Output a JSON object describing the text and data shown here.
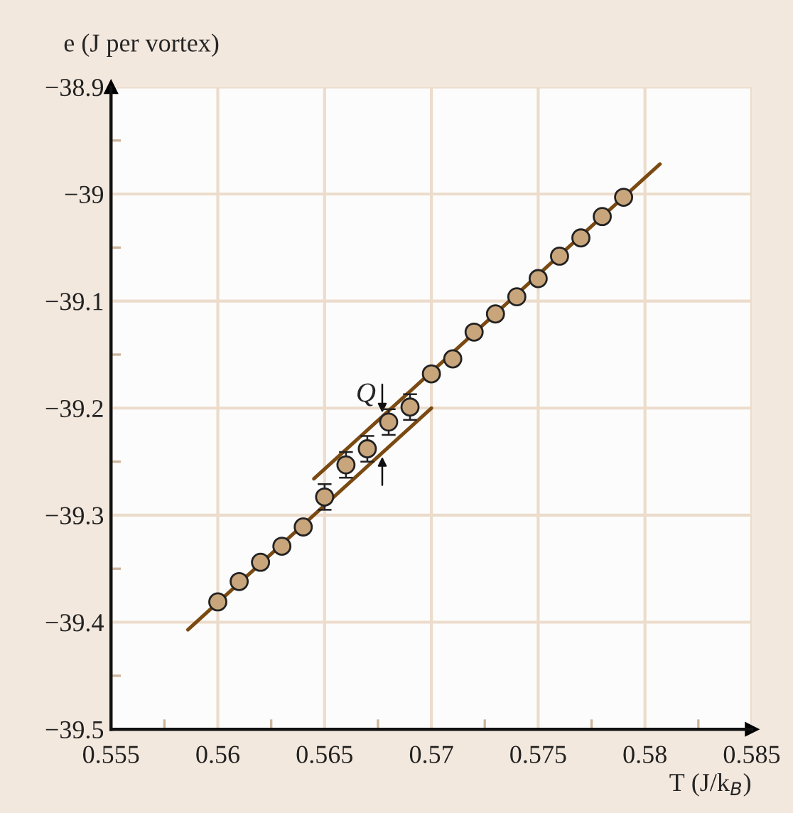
{
  "chart_data": {
    "type": "scatter",
    "xlabel": "T (J/k$_{B}$)",
    "ylabel": "e (J per vortex)",
    "series": [
      {
        "color": "#c9a57c",
        "marker": "circle",
        "x": [
          0.56,
          0.561,
          0.562,
          0.563,
          0.564,
          0.565,
          0.566,
          0.567,
          0.568,
          0.569,
          0.57,
          0.571,
          0.572,
          0.573,
          0.574,
          0.575,
          0.576,
          0.577,
          0.578,
          0.579
        ],
        "values": [
          -39.381,
          -39.362,
          -39.344,
          -39.329,
          -39.311,
          -39.283,
          -39.253,
          -39.238,
          -39.213,
          -39.199,
          -39.168,
          -39.154,
          -39.129,
          -39.112,
          -39.096,
          -39.079,
          -39.058,
          -39.041,
          -39.021,
          -39.003
        ],
        "errors": [
          null,
          null,
          null,
          null,
          null,
          0.012,
          0.012,
          0.012,
          0.012,
          0.012,
          null,
          null,
          null,
          null,
          null,
          null,
          null,
          null,
          null,
          null
        ]
      },
      {
        "type": "line",
        "color": "#7a4a12",
        "x": [
          0.5586,
          0.57
        ],
        "values": [
          -39.407,
          -39.2
        ]
      },
      {
        "type": "line",
        "color": "#7a4a12",
        "x": [
          0.5645,
          0.5807
        ],
        "values": [
          -39.266,
          -38.972
        ]
      }
    ],
    "xlim": [
      0.555,
      0.585
    ],
    "ylim": [
      -39.5,
      -38.9
    ],
    "xticks": [
      0.555,
      {
        "value": 0.5575,
        "label": null
      },
      0.56,
      {
        "value": 0.5625,
        "label": null
      },
      0.565,
      {
        "value": 0.5675,
        "label": null
      },
      0.57,
      {
        "value": 0.5725,
        "label": null
      },
      0.575,
      {
        "value": 0.5775,
        "label": null
      },
      0.58,
      {
        "value": 0.5825,
        "label": null
      },
      0.585
    ],
    "yticks": [
      {
        "value": -39.5,
        "label": "−39.5"
      },
      {
        "value": -39.45,
        "label": null
      },
      {
        "value": -39.4,
        "label": "−39.4"
      },
      {
        "value": -39.35,
        "label": null
      },
      {
        "value": -39.3,
        "label": "−39.3"
      },
      {
        "value": -39.25,
        "label": null
      },
      {
        "value": -39.2,
        "label": "−39.2"
      },
      {
        "value": -39.15,
        "label": null
      },
      {
        "value": -39.1,
        "label": "−39.1"
      },
      {
        "value": -39.05,
        "label": null
      },
      {
        "value": -39,
        "label": "−39"
      },
      {
        "value": -38.95,
        "label": null
      },
      {
        "value": -38.9,
        "label": "−38.9"
      }
    ],
    "grid": true,
    "annotations": [
      {
        "text": "Q",
        "x": 0.5677,
        "y": -39.208
      }
    ]
  }
}
